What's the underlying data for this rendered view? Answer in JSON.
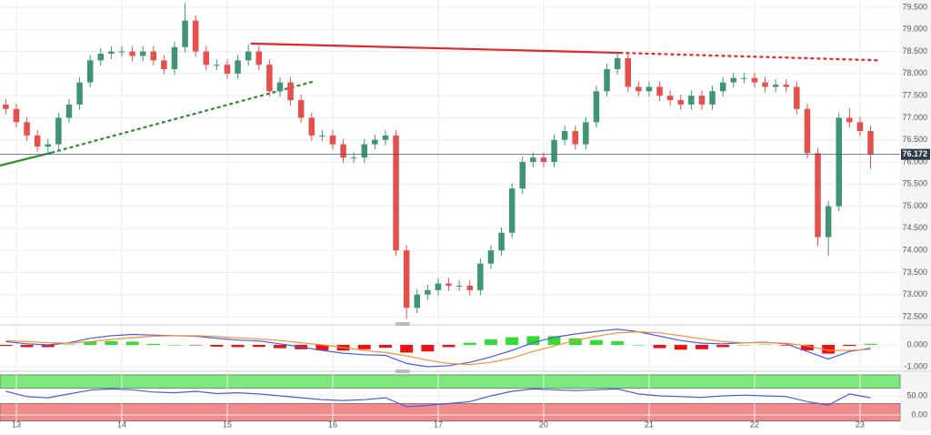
{
  "chart_data": [
    {
      "type": "candlestick",
      "x": [
        -0.1,
        0.0,
        0.1,
        0.2,
        0.3,
        0.4,
        0.5,
        0.6,
        0.7,
        0.8,
        0.9,
        1.0,
        1.1,
        1.2,
        1.3,
        1.4,
        1.5,
        1.6,
        1.7,
        1.8,
        1.9,
        2.0,
        2.1,
        2.2,
        2.3,
        2.4,
        2.5,
        2.6,
        2.7,
        2.8,
        2.9,
        3.0,
        3.1,
        3.2,
        3.3,
        3.4,
        3.5,
        3.6,
        3.7,
        3.8,
        3.9,
        4.0,
        4.1,
        4.2,
        4.3,
        4.4,
        4.5,
        4.6,
        4.7,
        4.8,
        4.9,
        5.0,
        5.1,
        5.2,
        5.3,
        5.4,
        5.5,
        5.6,
        5.7,
        5.8,
        5.9,
        6.0,
        6.1,
        6.2,
        6.3,
        6.4,
        6.5,
        6.6,
        6.7,
        6.8,
        6.9,
        7.0,
        7.1,
        7.2,
        7.3,
        7.4,
        7.5,
        7.6,
        7.7,
        7.8,
        7.9,
        8.0,
        8.1
      ],
      "open": [
        77.3,
        77.2,
        76.9,
        76.6,
        76.35,
        76.4,
        77.0,
        77.3,
        77.8,
        78.3,
        78.45,
        78.5,
        78.5,
        78.4,
        78.5,
        78.3,
        78.1,
        78.6,
        79.2,
        78.5,
        78.2,
        78.2,
        78.0,
        78.3,
        78.5,
        78.2,
        77.6,
        77.8,
        77.4,
        77.0,
        76.6,
        76.6,
        76.4,
        76.1,
        76.1,
        76.4,
        76.5,
        76.6,
        74.0,
        72.7,
        73.0,
        73.1,
        73.25,
        73.2,
        73.2,
        73.1,
        73.7,
        74.0,
        74.4,
        75.4,
        76.0,
        76.1,
        76.0,
        76.5,
        76.7,
        76.4,
        76.9,
        77.6,
        78.1,
        78.35,
        77.7,
        77.6,
        77.7,
        77.5,
        77.4,
        77.3,
        77.5,
        77.3,
        77.6,
        77.8,
        77.9,
        77.9,
        77.8,
        77.7,
        77.75,
        77.7,
        77.2,
        76.2,
        74.3,
        75.0,
        77.0,
        76.9,
        76.7
      ],
      "high": [
        77.42,
        77.32,
        77.02,
        76.72,
        76.52,
        77.12,
        77.42,
        77.92,
        78.42,
        78.57,
        78.62,
        78.62,
        78.62,
        78.62,
        78.62,
        78.42,
        78.72,
        79.6,
        79.32,
        78.62,
        78.32,
        78.32,
        78.42,
        78.65,
        78.62,
        78.32,
        77.92,
        77.92,
        77.52,
        77.12,
        76.72,
        76.72,
        76.52,
        76.22,
        76.52,
        76.62,
        76.72,
        76.72,
        74.12,
        73.12,
        73.22,
        73.37,
        73.37,
        73.32,
        73.32,
        73.82,
        74.12,
        74.52,
        75.52,
        76.12,
        76.22,
        76.22,
        76.62,
        76.82,
        76.82,
        77.02,
        77.72,
        78.22,
        78.45,
        78.47,
        77.82,
        77.82,
        77.82,
        77.62,
        77.52,
        77.62,
        77.62,
        77.72,
        77.92,
        78.02,
        78.02,
        78.02,
        77.92,
        77.87,
        77.87,
        77.82,
        77.32,
        76.32,
        75.12,
        77.12,
        77.22,
        77.02,
        76.82
      ],
      "low": [
        77.08,
        76.78,
        76.48,
        76.23,
        76.23,
        76.28,
        76.88,
        77.18,
        77.68,
        78.18,
        78.33,
        78.38,
        78.28,
        78.28,
        78.18,
        77.98,
        77.98,
        78.48,
        78.38,
        78.08,
        78.08,
        77.88,
        77.88,
        78.18,
        78.08,
        77.48,
        77.48,
        77.28,
        76.88,
        76.48,
        76.48,
        76.28,
        75.98,
        75.98,
        75.98,
        76.28,
        76.38,
        73.88,
        72.45,
        72.58,
        72.88,
        72.98,
        73.08,
        73.08,
        72.98,
        72.98,
        73.58,
        73.88,
        74.28,
        75.28,
        75.88,
        75.88,
        75.88,
        76.38,
        76.28,
        76.28,
        76.78,
        77.48,
        77.98,
        77.58,
        77.48,
        77.48,
        77.38,
        77.28,
        77.18,
        77.18,
        77.18,
        77.18,
        77.48,
        77.68,
        77.78,
        77.68,
        77.58,
        77.58,
        77.58,
        77.08,
        76.08,
        74.1,
        73.88,
        74.88,
        76.78,
        76.58,
        75.85
      ],
      "close": [
        77.2,
        76.9,
        76.6,
        76.35,
        76.4,
        77.0,
        77.3,
        77.8,
        78.3,
        78.45,
        78.5,
        78.5,
        78.4,
        78.5,
        78.3,
        78.1,
        78.6,
        79.2,
        78.5,
        78.2,
        78.2,
        78.0,
        78.3,
        78.5,
        78.2,
        77.6,
        77.8,
        77.4,
        77.0,
        76.6,
        76.6,
        76.4,
        76.1,
        76.1,
        76.4,
        76.5,
        76.6,
        74.0,
        72.7,
        73.0,
        73.1,
        73.25,
        73.2,
        73.2,
        73.1,
        73.7,
        74.0,
        74.4,
        75.4,
        76.0,
        76.1,
        76.0,
        76.5,
        76.7,
        76.4,
        76.9,
        77.6,
        78.1,
        78.35,
        77.7,
        77.6,
        77.7,
        77.5,
        77.4,
        77.3,
        77.5,
        77.3,
        77.6,
        77.8,
        77.9,
        77.9,
        77.8,
        77.7,
        77.75,
        77.7,
        77.2,
        76.2,
        74.3,
        75.0,
        77.0,
        76.9,
        76.7,
        76.17
      ],
      "up_color": "#3f9474",
      "down_color": "#e5504b",
      "xlim": [
        -0.155,
        8.38
      ],
      "xticks": [
        {
          "value": 0,
          "label": "13"
        },
        {
          "value": 1,
          "label": "14"
        },
        {
          "value": 2,
          "label": "15"
        },
        {
          "value": 3,
          "label": "16"
        },
        {
          "value": 4,
          "label": "17"
        },
        {
          "value": 5,
          "label": "20"
        },
        {
          "value": 6,
          "label": "21"
        },
        {
          "value": 7,
          "label": "22"
        },
        {
          "value": 8,
          "label": "23"
        }
      ],
      "ylim": [
        72.335,
        79.665
      ],
      "yticks": [
        {
          "value": 72.5,
          "label": "72.500"
        },
        {
          "value": 73,
          "label": "73.000"
        },
        {
          "value": 73.5,
          "label": "73.500"
        },
        {
          "value": 74,
          "label": "74.000"
        },
        {
          "value": 74.5,
          "label": "74.500"
        },
        {
          "value": 75,
          "label": "75.000"
        },
        {
          "value": 75.5,
          "label": "75.500"
        },
        {
          "value": 76,
          "label": "76.000"
        },
        {
          "value": 76.5,
          "label": "76.500"
        },
        {
          "value": 77,
          "label": "77.000"
        },
        {
          "value": 77.5,
          "label": "77.500"
        },
        {
          "value": 78,
          "label": "78.000"
        },
        {
          "value": 78.5,
          "label": "78.500"
        },
        {
          "value": 79,
          "label": "79.000"
        },
        {
          "value": 79.5,
          "label": "79.500"
        }
      ],
      "grid": true,
      "last_price": 76.172,
      "trendlines": [
        {
          "color": "#e8262a",
          "dashed": false,
          "points": [
            [
              2.22,
              78.68
            ],
            [
              5.72,
              78.47
            ]
          ]
        },
        {
          "color": "#e8262a",
          "dashed": true,
          "points": [
            [
              5.72,
              78.47
            ],
            [
              8.19,
              78.3
            ]
          ]
        },
        {
          "color": "#2e8b2e",
          "dashed": false,
          "points": [
            [
              -0.155,
              75.92
            ],
            [
              0.33,
              76.21
            ]
          ]
        },
        {
          "color": "#2e8b2e",
          "dashed": true,
          "points": [
            [
              0.33,
              76.21
            ],
            [
              2.83,
              77.83
            ]
          ]
        }
      ]
    },
    {
      "type": "combo",
      "x": [
        -0.1,
        0.1,
        0.3,
        0.5,
        0.7,
        0.9,
        1.1,
        1.3,
        1.5,
        1.7,
        1.9,
        2.1,
        2.3,
        2.5,
        2.7,
        2.9,
        3.1,
        3.3,
        3.5,
        3.7,
        3.9,
        4.1,
        4.3,
        4.5,
        4.7,
        4.9,
        5.1,
        5.3,
        5.5,
        5.7,
        5.9,
        6.1,
        6.3,
        6.5,
        6.7,
        6.9,
        7.1,
        7.3,
        7.5,
        7.7,
        7.9,
        8.1
      ],
      "xlim": [
        -0.155,
        8.38
      ],
      "ylim": [
        -1.167,
        0.875
      ],
      "yticks": [
        {
          "value": 0,
          "label": "0.000"
        },
        {
          "value": -1,
          "label": "-1.000"
        }
      ],
      "grid": true,
      "series": [
        {
          "type": "bar",
          "up_color": "#33dd33",
          "down_color": "#ee1111",
          "values": [
            -0.05,
            -0.1,
            -0.1,
            0.02,
            0.15,
            0.17,
            0.15,
            0.05,
            0.0,
            -0.02,
            -0.08,
            -0.1,
            -0.09,
            -0.15,
            -0.2,
            -0.25,
            -0.26,
            -0.2,
            -0.13,
            -0.35,
            -0.3,
            -0.1,
            0.1,
            0.25,
            0.35,
            0.4,
            0.4,
            0.3,
            0.22,
            0.17,
            0.0,
            -0.15,
            -0.22,
            -0.2,
            -0.1,
            0.0,
            0.02,
            -0.03,
            -0.25,
            -0.4,
            -0.05,
            0.05
          ]
        },
        {
          "type": "line",
          "color": "#4a5ce0",
          "values": [
            0.15,
            0.05,
            0.0,
            0.1,
            0.3,
            0.42,
            0.48,
            0.45,
            0.42,
            0.4,
            0.3,
            0.22,
            0.18,
            0.05,
            -0.1,
            -0.25,
            -0.38,
            -0.45,
            -0.48,
            -0.85,
            -1.0,
            -0.95,
            -0.8,
            -0.55,
            -0.25,
            0.1,
            0.35,
            0.5,
            0.62,
            0.72,
            0.6,
            0.4,
            0.2,
            0.08,
            0.05,
            0.1,
            0.12,
            0.05,
            -0.3,
            -0.65,
            -0.3,
            -0.15
          ]
        },
        {
          "type": "line",
          "color": "#f5903d",
          "values": [
            0.2,
            0.15,
            0.1,
            0.08,
            0.15,
            0.25,
            0.33,
            0.4,
            0.42,
            0.42,
            0.38,
            0.32,
            0.27,
            0.2,
            0.1,
            0.0,
            -0.12,
            -0.25,
            -0.35,
            -0.5,
            -0.7,
            -0.85,
            -0.9,
            -0.8,
            -0.6,
            -0.3,
            -0.05,
            0.2,
            0.4,
            0.55,
            0.6,
            0.55,
            0.42,
            0.28,
            0.15,
            0.1,
            0.1,
            0.08,
            -0.05,
            -0.25,
            -0.25,
            -0.2
          ]
        }
      ]
    },
    {
      "type": "line",
      "x": [
        -0.1,
        0.1,
        0.3,
        0.5,
        0.7,
        0.9,
        1.1,
        1.3,
        1.5,
        1.7,
        1.9,
        2.1,
        2.3,
        2.5,
        2.7,
        2.9,
        3.1,
        3.3,
        3.5,
        3.7,
        3.9,
        4.1,
        4.3,
        4.5,
        4.7,
        4.9,
        5.1,
        5.3,
        5.5,
        5.7,
        5.9,
        6.1,
        6.3,
        6.5,
        6.7,
        6.9,
        7.1,
        7.3,
        7.5,
        7.7,
        7.9,
        8.1
      ],
      "xlim": [
        -0.155,
        8.38
      ],
      "ylim": [
        -19,
        111.9
      ],
      "yticks": [
        {
          "value": 50,
          "label": "50.00"
        },
        {
          "value": 0,
          "label": "0.00"
        }
      ],
      "grid": true,
      "bands": [
        {
          "from": 70,
          "to": 105,
          "color": "#7de87d"
        },
        {
          "from": -16,
          "to": 30,
          "color": "#f28b8b"
        }
      ],
      "color": "#4a5ce0",
      "values": [
        62,
        48,
        45,
        55,
        65,
        68,
        66,
        60,
        58,
        62,
        56,
        58,
        55,
        50,
        45,
        40,
        38,
        40,
        45,
        22,
        25,
        30,
        35,
        50,
        62,
        68,
        66,
        64,
        66,
        68,
        55,
        50,
        48,
        46,
        50,
        52,
        50,
        48,
        35,
        26,
        55,
        45
      ]
    }
  ]
}
